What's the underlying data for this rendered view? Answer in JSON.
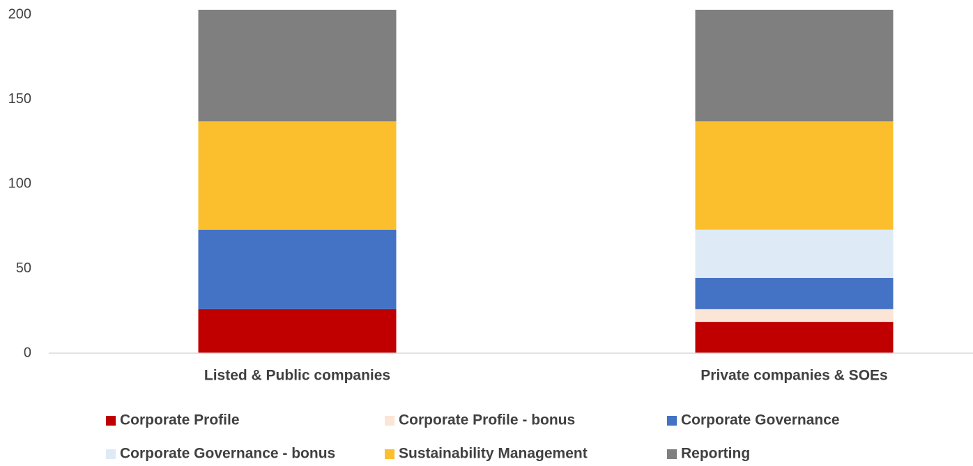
{
  "chart_data": {
    "type": "stacked_bar",
    "categories": [
      "Listed & Public companies",
      "Private companies & SOEs"
    ],
    "series": [
      {
        "name": "Corporate Profile",
        "color": "#c00000",
        "values": [
          26,
          18.5
        ]
      },
      {
        "name": "Corporate Profile - bonus",
        "color": "#fbe5d6",
        "values": [
          0,
          7.5
        ]
      },
      {
        "name": "Corporate Governance",
        "color": "#4472c4",
        "values": [
          47,
          18.5
        ]
      },
      {
        "name": "Corporate Governance - bonus",
        "color": "#deebf7",
        "values": [
          0,
          28.5
        ]
      },
      {
        "name": "Sustainability Management",
        "color": "#fbbf2d",
        "values": [
          64,
          64
        ]
      },
      {
        "name": "Reporting",
        "color": "#7f7f7f",
        "values": [
          66,
          66
        ]
      }
    ],
    "ylim": [
      0,
      203
    ],
    "yticks": [
      0,
      50,
      100,
      150,
      200
    ],
    "grid": false
  }
}
